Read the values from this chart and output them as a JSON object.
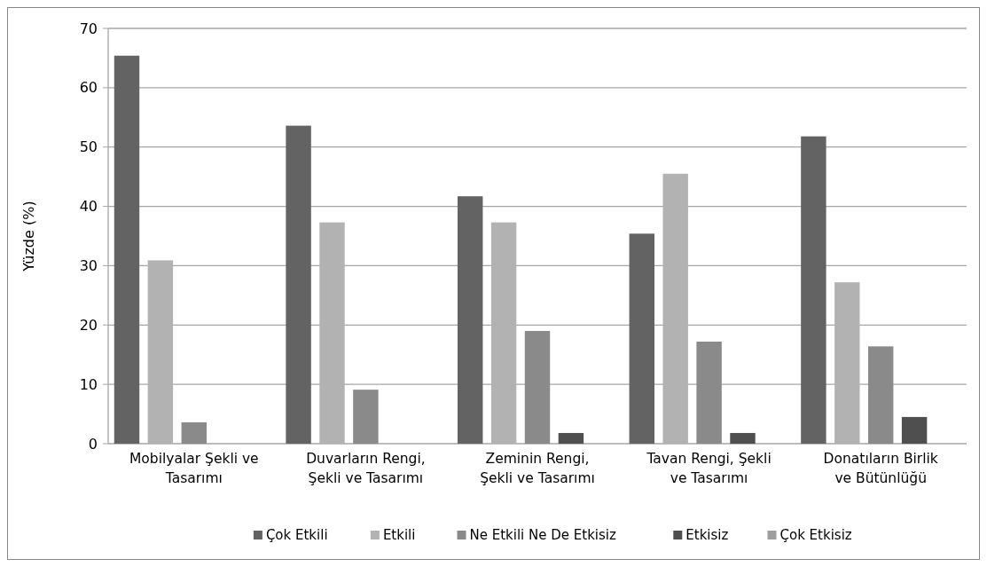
{
  "chart_data": {
    "type": "bar",
    "ylabel": "Yüzde (%)",
    "categories": [
      "Mobilyalar Şekli ve Tasarımı",
      "Duvarların Rengi, Şekli ve Tasarımı",
      "Zeminin Rengi, Şekli ve Tasarımı",
      "Tavan Rengi, Şekli ve Tasarımı",
      "Donatıların Birlik ve Bütünlüğü"
    ],
    "series": [
      {
        "name": "Çok Etkili",
        "color": "#636363",
        "values": [
          65.4,
          53.6,
          41.7,
          35.4,
          51.8
        ]
      },
      {
        "name": "Etkili",
        "color": "#b2b2b2",
        "values": [
          30.9,
          37.3,
          37.3,
          45.5,
          27.2
        ]
      },
      {
        "name": "Ne Etkili Ne De Etkisiz",
        "color": "#8a8a8a",
        "values": [
          3.6,
          9.1,
          19.0,
          17.2,
          16.4
        ]
      },
      {
        "name": "Etkisiz",
        "color": "#4f4f4f",
        "values": [
          0,
          0,
          1.8,
          1.8,
          4.5
        ]
      },
      {
        "name": "Çok Etkisiz",
        "color": "#9e9e9e",
        "values": [
          0,
          0,
          0,
          0,
          0
        ]
      }
    ],
    "ylim": [
      0,
      70
    ],
    "yticks": [
      0,
      10,
      20,
      30,
      40,
      50,
      60,
      70
    ],
    "grid": "y",
    "legend": "bottom"
  }
}
